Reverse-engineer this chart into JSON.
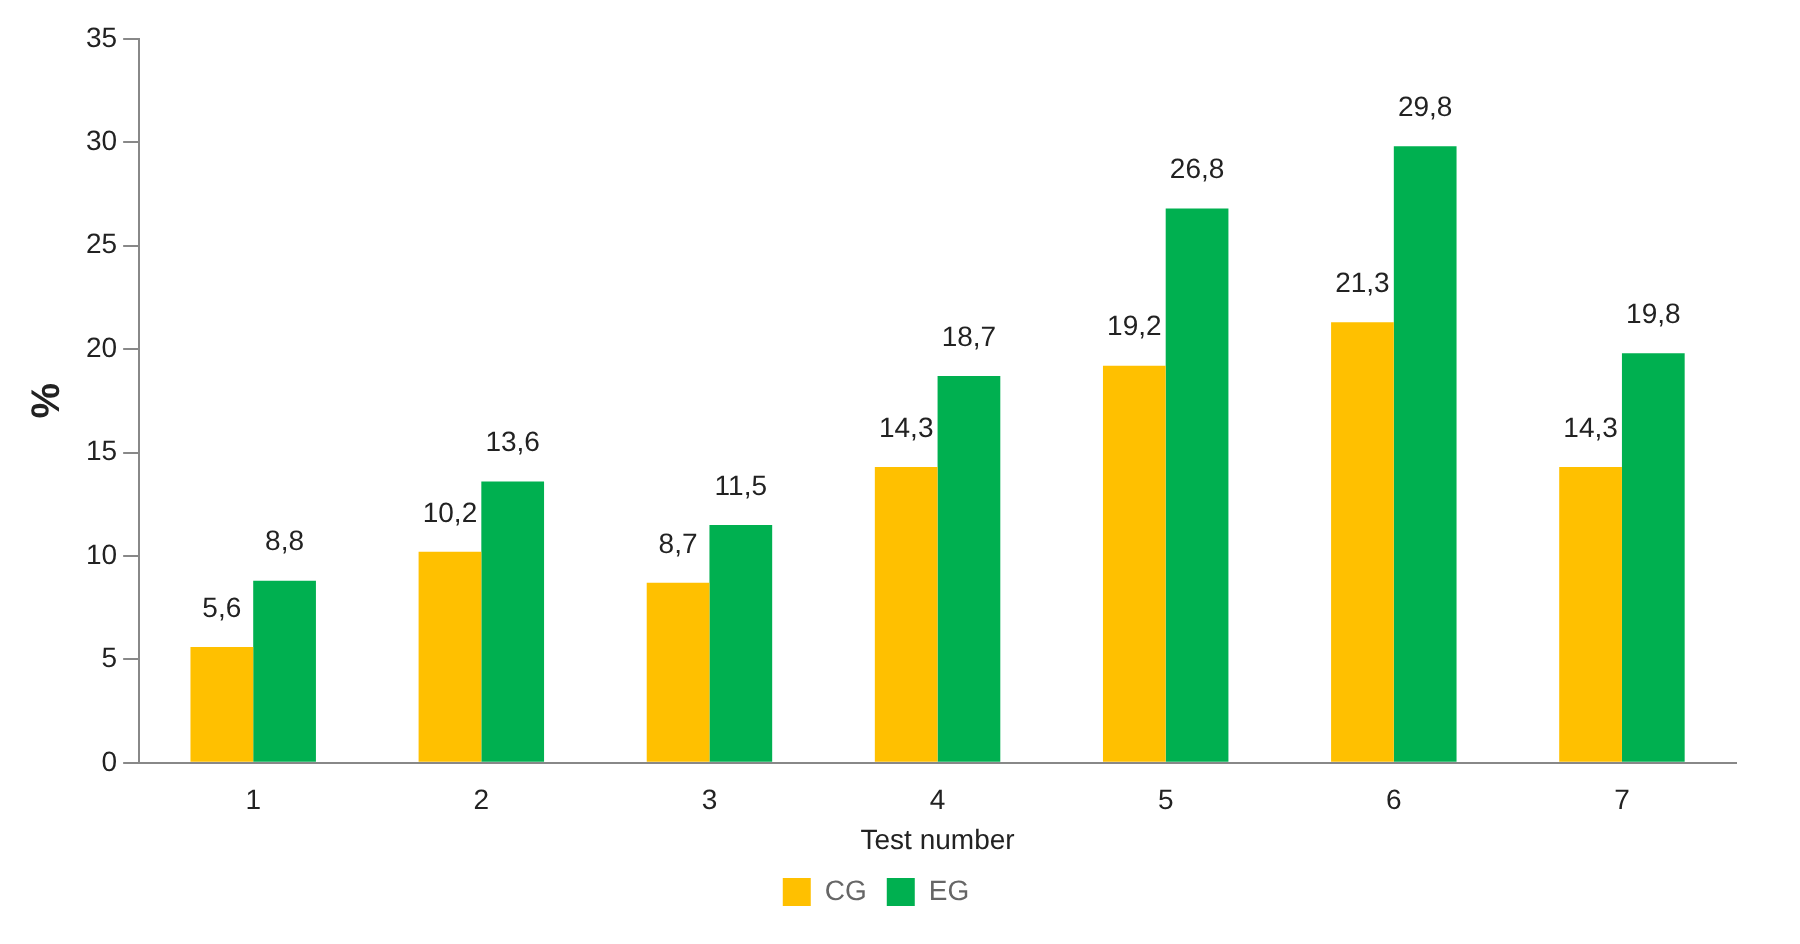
{
  "chart_data": {
    "type": "bar",
    "xlabel": "Test number",
    "ylabel": "%",
    "categories": [
      "1",
      "2",
      "3",
      "4",
      "5",
      "6",
      "7"
    ],
    "series": [
      {
        "name": "CG",
        "color": "#ffc000",
        "values": [
          5.6,
          10.2,
          8.7,
          14.3,
          19.2,
          21.3,
          14.3
        ],
        "value_labels": [
          "5,6",
          "10,2",
          "8,7",
          "14,3",
          "19,2",
          "21,3",
          "14,3"
        ]
      },
      {
        "name": "EG",
        "color": "#00b050",
        "values": [
          8.8,
          13.6,
          11.5,
          18.7,
          26.8,
          29.8,
          19.8
        ],
        "value_labels": [
          "8,8",
          "13,6",
          "11,5",
          "18,7",
          "26,8",
          "29,8",
          "19,8"
        ]
      }
    ],
    "ylim": [
      0,
      35
    ],
    "yticks": [
      0,
      5,
      10,
      15,
      20,
      25,
      30,
      35
    ],
    "grid": false,
    "legend": "bottom"
  }
}
